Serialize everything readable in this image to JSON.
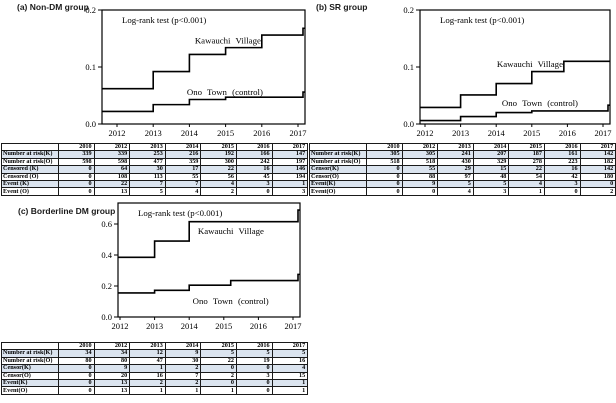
{
  "panel_titles": [
    "(a) Non-DM group",
    "(b) SR group",
    "(c) Borderline DM group"
  ],
  "colors": {
    "line": "#000000",
    "table_shade": "#dbe4ef",
    "border": "#1a1a1a",
    "background": "#ffffff"
  },
  "chart_data": [
    {
      "type": "line",
      "title": "(a) Non-DM group",
      "annotation": "Log-rank test (p<0.001)",
      "xlabel": "",
      "ylabel": "",
      "x_ticks": [
        "2012",
        "2013",
        "2014",
        "2015",
        "2016",
        "2017"
      ],
      "y_ticks": [
        "0.0",
        "0.1",
        "0.2"
      ],
      "y_tick_values": [
        0,
        0.1,
        0.2
      ],
      "ylim": [
        0,
        0.2
      ],
      "grid": false,
      "series": [
        {
          "name": "Kawauchi Village",
          "label_anchor": {
            "x": 2014.15,
            "y": 0.141
          },
          "steps": [
            [
              2012,
              0.062
            ],
            [
              2013,
              0.092
            ],
            [
              2014,
              0.122
            ],
            [
              2015,
              0.134
            ],
            [
              2016,
              0.156
            ]
          ],
          "end_tick": 0.168
        },
        {
          "name": "Ono Town (control)",
          "label_anchor": {
            "x": 2013.93,
            "y": 0.051
          },
          "steps": [
            [
              2012,
              0.022
            ],
            [
              2013,
              0.034
            ],
            [
              2014,
              0.043
            ],
            [
              2015,
              0.047
            ]
          ],
          "end_tick": 0.056
        }
      ]
    },
    {
      "type": "line",
      "title": "(b) SR group",
      "annotation": "Log-rank test (p<0.001)",
      "xlabel": "",
      "ylabel": "",
      "x_ticks": [
        "2012",
        "2013",
        "2014",
        "2015",
        "2016",
        "2017"
      ],
      "y_ticks": [
        "0.0",
        "0.1",
        "0.2"
      ],
      "y_tick_values": [
        0,
        0.1,
        0.2
      ],
      "ylim": [
        0,
        0.2
      ],
      "grid": false,
      "series": [
        {
          "name": "Kawauchi Village",
          "label_anchor": {
            "x": 2014.02,
            "y": 0.1
          },
          "steps": [
            [
              2012,
              0.029
            ],
            [
              2013,
              0.051
            ],
            [
              2014,
              0.071
            ],
            [
              2015,
              0.092
            ],
            [
              2015.9,
              0.11
            ]
          ],
          "end_tick": null
        },
        {
          "name": "Ono Town (control)",
          "label_anchor": {
            "x": 2014.16,
            "y": 0.032
          },
          "steps": [
            [
              2012,
              0.006
            ],
            [
              2013,
              0.013
            ],
            [
              2014,
              0.02
            ],
            [
              2015,
              0.023
            ]
          ],
          "end_tick": 0.033
        }
      ]
    },
    {
      "type": "line",
      "title": "(c) Borderline DM group",
      "annotation": "Log-rank test (p<0.001)",
      "xlabel": "",
      "ylabel": "",
      "x_ticks": [
        "2012",
        "2013",
        "2014",
        "2015",
        "2016",
        "2017"
      ],
      "y_ticks": [
        "0.0",
        "0.2",
        "0.4",
        "0.6"
      ],
      "y_tick_values": [
        0,
        0.2,
        0.4,
        0.6
      ],
      "ylim": [
        0,
        0.735
      ],
      "grid": false,
      "series": [
        {
          "name": "Kawauchi Village",
          "label_anchor": {
            "x": 2014.25,
            "y": 0.535
          },
          "steps": [
            [
              2012,
              0.385
            ],
            [
              2013,
              0.49
            ],
            [
              2014,
              0.615
            ]
          ],
          "end_tick": 0.69
        },
        {
          "name": "Ono Town (control)",
          "label_anchor": {
            "x": 2014.1,
            "y": 0.084
          },
          "steps": [
            [
              2012,
              0.155
            ],
            [
              2013,
              0.172
            ],
            [
              2014,
              0.205
            ],
            [
              2015.2,
              0.235
            ]
          ],
          "end_tick": 0.275
        }
      ]
    }
  ],
  "tables": [
    {
      "columns": [
        "",
        "2010",
        "2012",
        "2013",
        "2014",
        "2015",
        "2016",
        "2017"
      ],
      "rows": [
        {
          "label": "Number at risk(K)",
          "values": [
            "339",
            "339",
            "253",
            "216",
            "192",
            "166",
            "147"
          ],
          "shaded": true
        },
        {
          "label": "Number at risk(O)",
          "values": [
            "598",
            "598",
            "477",
            "359",
            "300",
            "242",
            "197"
          ],
          "shaded": false
        },
        {
          "label": "Censored (K)",
          "values": [
            "0",
            "64",
            "30",
            "17",
            "22",
            "16",
            "146"
          ],
          "shaded": true
        },
        {
          "label": "Censored (O)",
          "values": [
            "0",
            "108",
            "113",
            "55",
            "56",
            "45",
            "194"
          ],
          "shaded": false
        },
        {
          "label": "Event (K)",
          "values": [
            "0",
            "22",
            "7",
            "7",
            "4",
            "3",
            "1"
          ],
          "shaded": true
        },
        {
          "label": "Event (O)",
          "values": [
            "0",
            "13",
            "5",
            "4",
            "2",
            "0",
            "3"
          ],
          "shaded": false
        }
      ]
    },
    {
      "columns": [
        "",
        "2010",
        "2012",
        "2013",
        "2014",
        "2015",
        "2016",
        "2017"
      ],
      "rows": [
        {
          "label": "Number at risk(K)",
          "values": [
            "305",
            "305",
            "241",
            "207",
            "187",
            "161",
            "142"
          ],
          "shaded": true
        },
        {
          "label": "Number at risk(O)",
          "values": [
            "518",
            "518",
            "430",
            "329",
            "278",
            "223",
            "182"
          ],
          "shaded": false
        },
        {
          "label": "Censor(K)",
          "values": [
            "0",
            "55",
            "29",
            "15",
            "22",
            "16",
            "142"
          ],
          "shaded": true
        },
        {
          "label": "Censor(O)",
          "values": [
            "0",
            "88",
            "97",
            "48",
            "54",
            "42",
            "180"
          ],
          "shaded": false
        },
        {
          "label": "Event(K)",
          "values": [
            "0",
            "9",
            "5",
            "5",
            "4",
            "3",
            "0"
          ],
          "shaded": true
        },
        {
          "label": "Event(O)",
          "values": [
            "0",
            "0",
            "4",
            "3",
            "1",
            "0",
            "2"
          ],
          "shaded": false
        }
      ]
    },
    {
      "columns": [
        "",
        "2010",
        "2012",
        "2013",
        "2014",
        "2015",
        "2016",
        "2017"
      ],
      "rows": [
        {
          "label": "Number at risk(K)",
          "values": [
            "34",
            "34",
            "12",
            "9",
            "5",
            "5",
            "5"
          ],
          "shaded": true
        },
        {
          "label": "Number at risk(O)",
          "values": [
            "80",
            "80",
            "47",
            "30",
            "22",
            "19",
            "16"
          ],
          "shaded": false
        },
        {
          "label": "Censor(K)",
          "values": [
            "0",
            "9",
            "1",
            "2",
            "0",
            "0",
            "4"
          ],
          "shaded": true
        },
        {
          "label": "Censor(O)",
          "values": [
            "0",
            "20",
            "16",
            "7",
            "2",
            "3",
            "15"
          ],
          "shaded": false
        },
        {
          "label": "Event(K)",
          "values": [
            "0",
            "13",
            "2",
            "2",
            "0",
            "0",
            "1"
          ],
          "shaded": true
        },
        {
          "label": "Event(O)",
          "values": [
            "0",
            "13",
            "1",
            "1",
            "1",
            "0",
            "1"
          ],
          "shaded": false
        }
      ]
    }
  ]
}
